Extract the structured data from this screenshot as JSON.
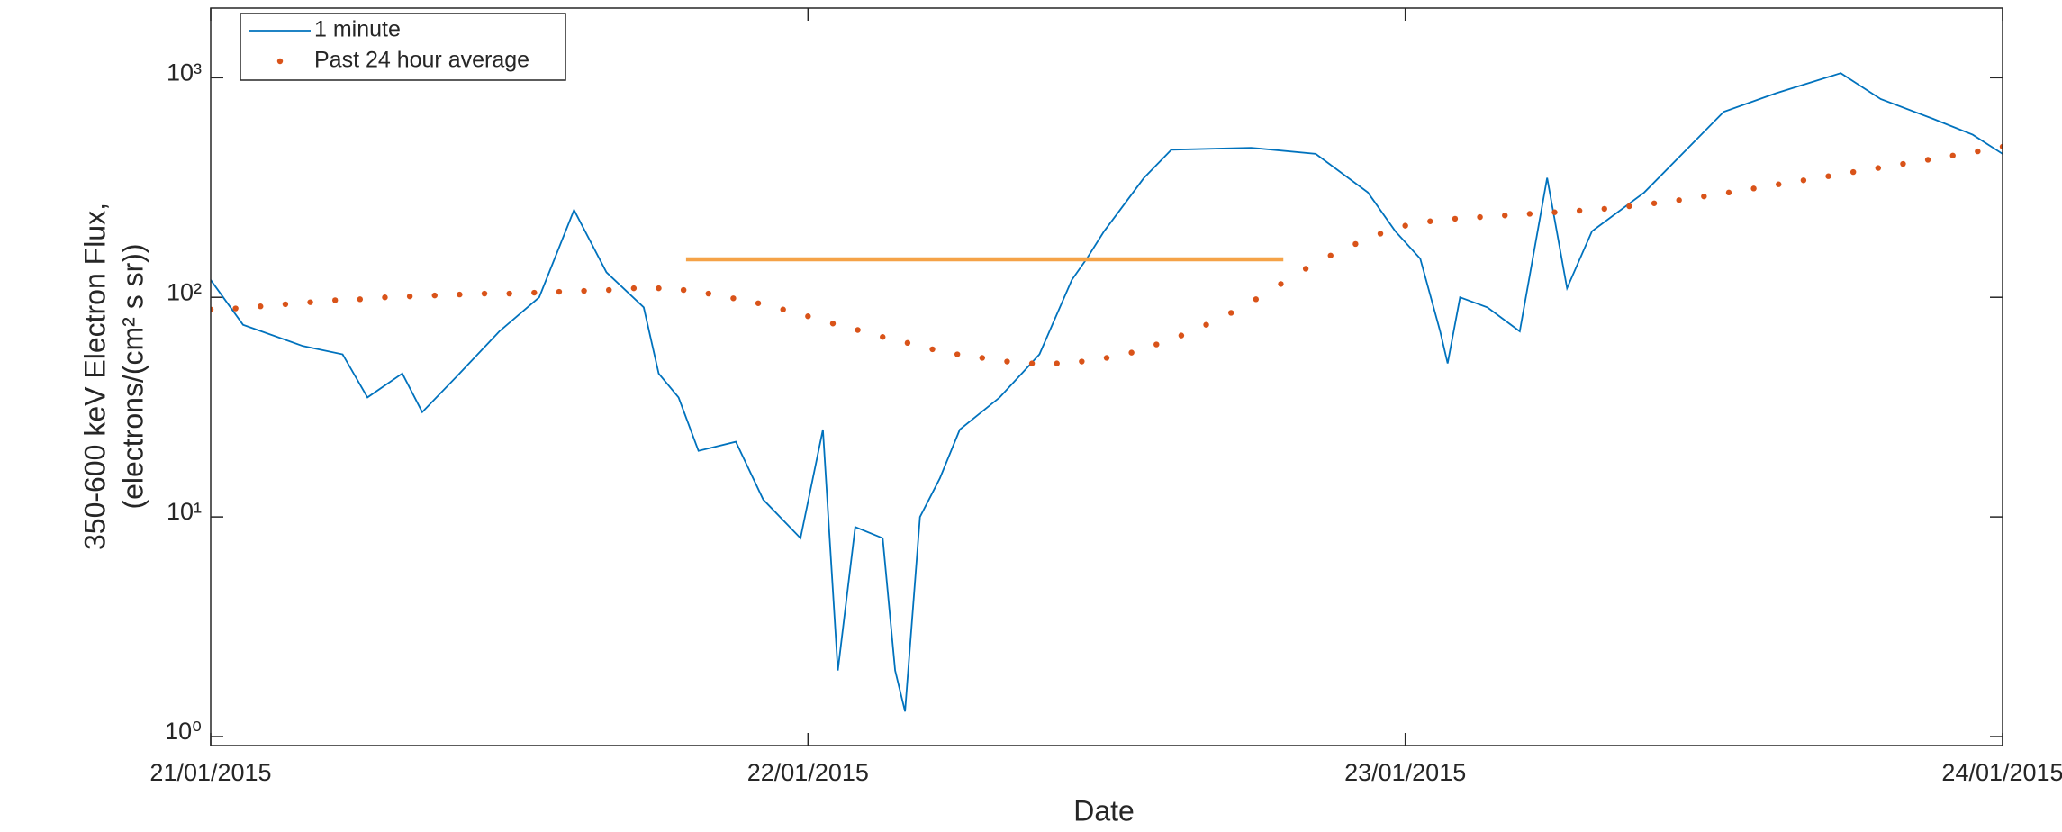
{
  "chart_data": {
    "type": "line",
    "x_label": "Date",
    "y_label": [
      "350-600 keV Electron Flux,",
      "(electrons/(cm² s sr))"
    ],
    "log_y": true,
    "xlim": [
      0,
      72
    ],
    "xticks": [
      {
        "value": 0,
        "label": "21/01/2015"
      },
      {
        "value": 24,
        "label": "22/01/2015"
      },
      {
        "value": 48,
        "label": "23/01/2015"
      },
      {
        "value": 72,
        "label": "24/01/2015"
      }
    ],
    "ylim": [
      0.91,
      2075
    ],
    "yticks": [
      {
        "value": 1,
        "label": "10⁰"
      },
      {
        "value": 10,
        "label": "10¹"
      },
      {
        "value": 100,
        "label": "10²"
      },
      {
        "value": 1000,
        "label": "10³"
      }
    ],
    "legend": "upper left",
    "series": [
      {
        "name": "1 minute",
        "color": "#0072bd",
        "style": "line",
        "x": [
          0,
          1.3,
          3.7,
          5.3,
          6.3,
          7.7,
          8.5,
          10,
          11.6,
          13.2,
          14.6,
          15.9,
          17.4,
          18,
          18.8,
          19.6,
          21.1,
          22.2,
          23.7,
          24.6,
          25.2,
          25.9,
          27,
          27.5,
          27.9,
          28.5,
          29.3,
          30.1,
          31.7,
          33.3,
          34.6,
          35.2,
          35.9,
          37.5,
          38.6,
          41.8,
          44.4,
          46.5,
          47.6,
          48.6,
          49.4,
          49.7,
          50.2,
          51.3,
          52.6,
          53.7,
          54.5,
          55.5,
          57.6,
          60.8,
          62.9,
          65.5,
          67.1,
          69.2,
          70.8,
          72
        ],
        "values": [
          120,
          75,
          60,
          55,
          35,
          45,
          30,
          45,
          70,
          100,
          250,
          130,
          90,
          45,
          35,
          20,
          22,
          12,
          8,
          25,
          2,
          9,
          8,
          2,
          1.3,
          10,
          15,
          25,
          35,
          55,
          120,
          150,
          200,
          350,
          470,
          480,
          450,
          300,
          200,
          150,
          70,
          50,
          100,
          90,
          70,
          350,
          110,
          200,
          300,
          700,
          850,
          1050,
          800,
          650,
          550,
          450
        ]
      },
      {
        "name": "Past 24 hour average",
        "color": "#d95319",
        "style": "dots",
        "x": [
          0,
          1,
          2,
          3,
          4,
          5,
          6,
          7,
          8,
          9,
          10,
          11,
          12,
          13,
          14,
          15,
          16,
          17,
          18,
          19,
          20,
          21,
          22,
          23,
          24,
          25,
          26,
          27,
          28,
          29,
          30,
          31,
          32,
          33,
          34,
          35,
          36,
          37,
          38,
          39,
          40,
          41,
          42,
          43,
          44,
          45,
          46,
          47,
          48,
          49,
          50,
          51,
          52,
          53,
          54,
          55,
          56,
          57,
          58,
          59,
          60,
          61,
          62,
          63,
          64,
          65,
          66,
          67,
          68,
          69,
          70,
          71,
          72
        ],
        "values": [
          88,
          89,
          91,
          93,
          95,
          97,
          98,
          100,
          101,
          102,
          103,
          104,
          104,
          105,
          106,
          107,
          108,
          110,
          110,
          108,
          104,
          99,
          94,
          88,
          82,
          76,
          71,
          66,
          62,
          58,
          55,
          53,
          51,
          50,
          50,
          51,
          53,
          56,
          61,
          67,
          75,
          85,
          98,
          115,
          135,
          155,
          175,
          195,
          212,
          222,
          228,
          232,
          236,
          240,
          244,
          248,
          253,
          260,
          268,
          277,
          288,
          300,
          313,
          327,
          341,
          356,
          372,
          388,
          405,
          423,
          442,
          462,
          485
        ]
      }
    ],
    "reference_line": {
      "value": 149,
      "x": [
        19.1,
        43.1
      ],
      "color": "#f5a247"
    }
  }
}
